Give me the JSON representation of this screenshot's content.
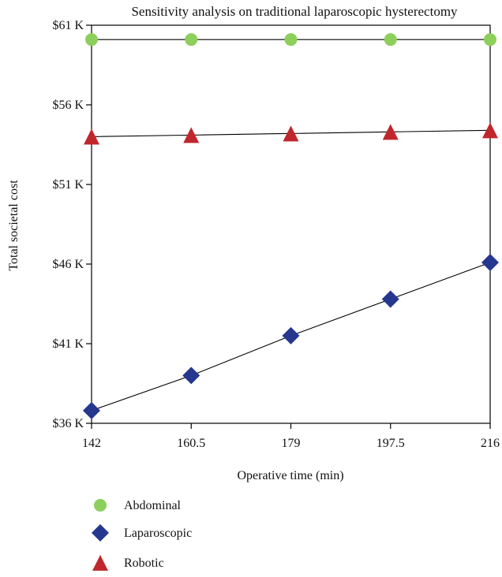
{
  "chart_data": {
    "type": "line",
    "title": "Sensitivity analysis on traditional laparoscopic hysterectomy",
    "xlabel": "Operative time (min)",
    "ylabel": "Total societal cost",
    "x": [
      142,
      160.5,
      179,
      197.5,
      216
    ],
    "x_tick_labels": [
      "142",
      "160.5",
      "179",
      "197.5",
      "216"
    ],
    "ylim": [
      36000,
      61000
    ],
    "y_ticks": [
      36000,
      41000,
      46000,
      51000,
      56000,
      61000
    ],
    "y_tick_labels": [
      "$36 K",
      "$41 K",
      "$46 K",
      "$51 K",
      "$56 K",
      "$61 K"
    ],
    "grid": false,
    "legend_position": "bottom-left, below plot",
    "series": [
      {
        "name": "Abdominal",
        "marker": "circle",
        "color": "#8ccf5a",
        "values": [
          60100,
          60100,
          60100,
          60100,
          60100
        ]
      },
      {
        "name": "Laparoscopic",
        "marker": "diamond",
        "color": "#25378f",
        "values": [
          36800,
          39000,
          41500,
          43800,
          46100
        ]
      },
      {
        "name": "Robotic",
        "marker": "triangle",
        "color": "#c0272d",
        "values": [
          54000,
          54100,
          54200,
          54300,
          54400
        ]
      }
    ]
  }
}
